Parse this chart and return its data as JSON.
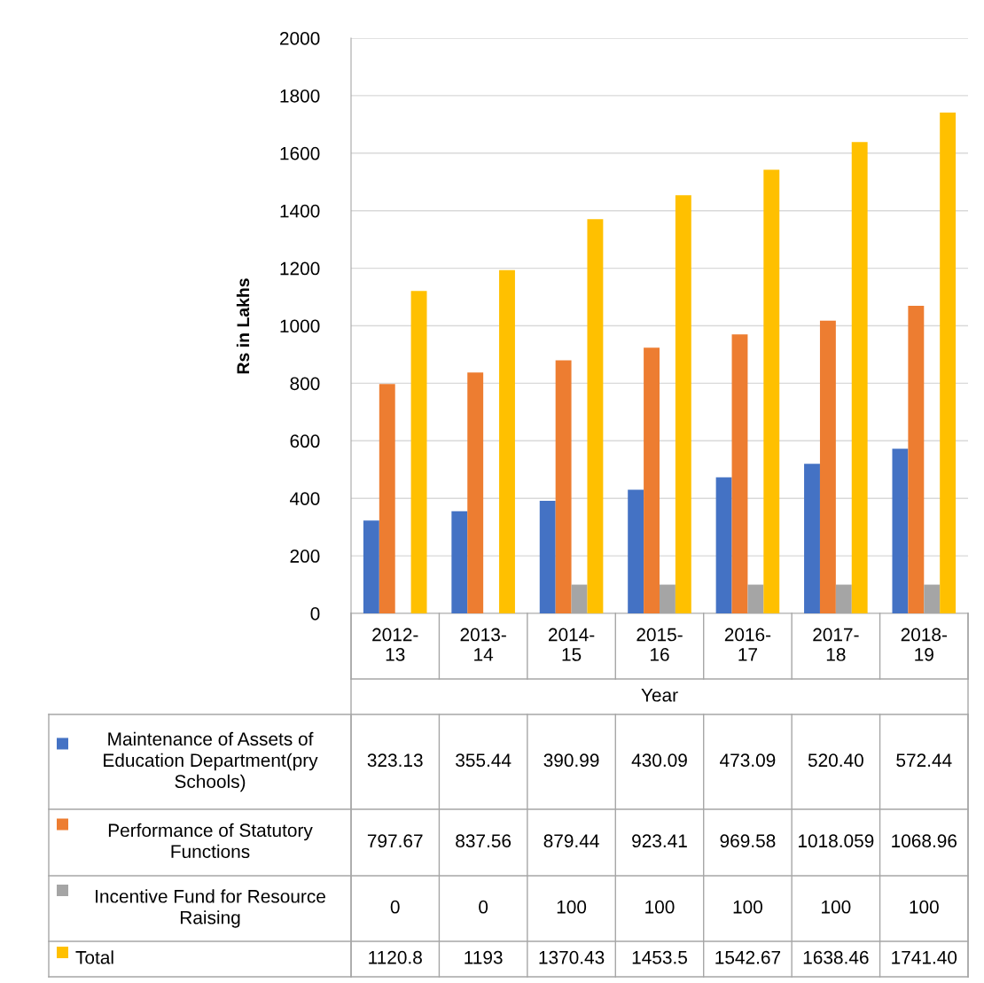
{
  "chart_data": {
    "type": "bar",
    "ylabel": "Rs in Lakhs",
    "xlabel": "Year",
    "categories": [
      "2012-13",
      "2013-14",
      "2014-15",
      "2015-16",
      "2016-17",
      "2017-18",
      "2018-19"
    ],
    "series": [
      {
        "name": "Maintenance of Assets of Education Department(pry Schools)",
        "color": "#4472c4",
        "values": [
          323.13,
          355.44,
          390.99,
          430.09,
          473.09,
          520.4,
          572.44
        ],
        "value_labels": [
          "323.13",
          "355.44",
          "390.99",
          "430.09",
          "473.09",
          "520.40",
          "572.44"
        ]
      },
      {
        "name": "Performance of Statutory Functions",
        "color": "#ed7d31",
        "values": [
          797.67,
          837.56,
          879.44,
          923.41,
          969.58,
          1018.059,
          1068.96
        ],
        "value_labels": [
          "797.67",
          "837.56",
          "879.44",
          "923.41",
          "969.58",
          "1018.059",
          "1068.96"
        ]
      },
      {
        "name": "Incentive Fund for Resource Raising",
        "color": "#a5a5a5",
        "values": [
          0,
          0,
          100,
          100,
          100,
          100,
          100
        ],
        "value_labels": [
          "0",
          "0",
          "100",
          "100",
          "100",
          "100",
          "100"
        ]
      },
      {
        "name": "Total",
        "color": "#ffc000",
        "values": [
          1120.8,
          1193,
          1370.43,
          1453.5,
          1542.67,
          1638.46,
          1741.4
        ],
        "value_labels": [
          "1120.8",
          "1193",
          "1370.43",
          "1453.5",
          "1542.67",
          "1638.46",
          "1741.40"
        ]
      }
    ],
    "ylim": [
      0,
      2000
    ],
    "yticks": [
      0,
      200,
      400,
      600,
      800,
      1000,
      1200,
      1400,
      1600,
      1800,
      2000
    ],
    "grid": "y",
    "legend": "bottom"
  }
}
